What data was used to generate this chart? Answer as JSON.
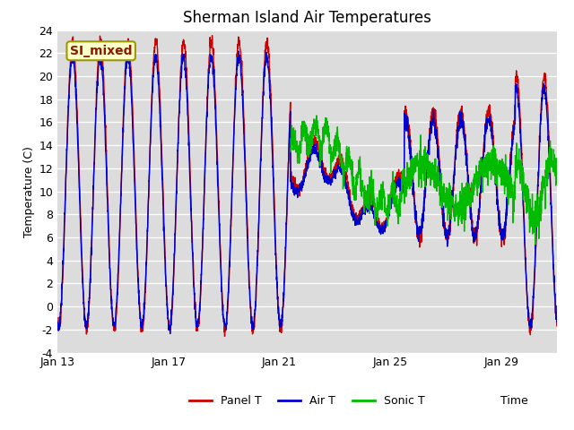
{
  "title": "Sherman Island Air Temperatures",
  "ylabel": "Temperature (C)",
  "ylim": [
    -4,
    24
  ],
  "yticks": [
    -4,
    -2,
    0,
    2,
    4,
    6,
    8,
    10,
    12,
    14,
    16,
    18,
    20,
    22,
    24
  ],
  "xtick_labels": [
    "Jan 13",
    "Jan 17",
    "Jan 21",
    "Jan 25",
    "Jan 29"
  ],
  "background_color": "#dcdcdc",
  "figure_color": "#ffffff",
  "line_colors": {
    "panel": "#cc0000",
    "air": "#0000cc",
    "sonic": "#00bb00"
  },
  "legend_labels": [
    "Panel T",
    "Air T",
    "Sonic T"
  ],
  "annotation_text": "SI_mixed",
  "annotation_bg": "#ffffcc",
  "annotation_border": "#999900",
  "linewidth": 1.0
}
